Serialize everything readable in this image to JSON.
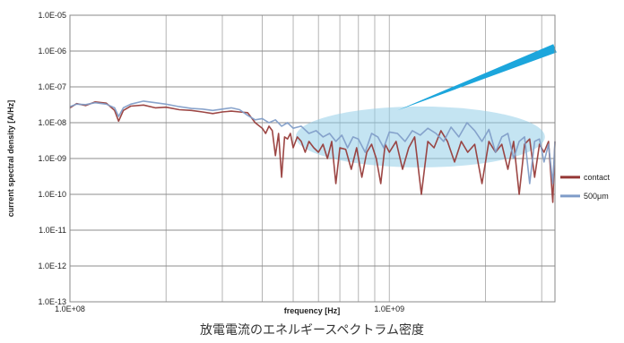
{
  "chart_data": {
    "type": "line",
    "title": "",
    "xlabel": "frequency [Hz]",
    "ylabel": "current spectral density [A/Hz]",
    "x_scale": "log",
    "y_scale": "log",
    "xlim": [
      100000000.0,
      3300000000.0
    ],
    "ylim": [
      1e-13,
      1e-05
    ],
    "x_ticks": [
      100000000.0,
      1000000000.0
    ],
    "x_tick_labels": [
      "1.0E+08",
      "1.0E+09"
    ],
    "y_ticks": [
      1e-13,
      1e-12,
      1e-11,
      1e-10,
      1e-09,
      1e-08,
      1e-07,
      1e-06,
      1e-05
    ],
    "y_tick_labels": [
      "1.0E-13",
      "1.0E-12",
      "1.0E-11",
      "1.0E-10",
      "1.0E-09",
      "1.0E-08",
      "1.0E-07",
      "1.0E-06",
      "1.0E-05"
    ],
    "grid": true,
    "legend_position": "right",
    "series": [
      {
        "name": "contact",
        "color": "#953735",
        "x": [
          100000000.0,
          105000000.0,
          112000000.0,
          120000000.0,
          130000000.0,
          138000000.0,
          142000000.0,
          147000000.0,
          155000000.0,
          170000000.0,
          185000000.0,
          200000000.0,
          220000000.0,
          240000000.0,
          260000000.0,
          280000000.0,
          300000000.0,
          320000000.0,
          340000000.0,
          360000000.0,
          380000000.0,
          400000000.0,
          410000000.0,
          420000000.0,
          430000000.0,
          440000000.0,
          450000000.0,
          460000000.0,
          470000000.0,
          480000000.0,
          490000000.0,
          500000000.0,
          515000000.0,
          530000000.0,
          545000000.0,
          560000000.0,
          580000000.0,
          600000000.0,
          620000000.0,
          640000000.0,
          660000000.0,
          680000000.0,
          700000000.0,
          730000000.0,
          760000000.0,
          790000000.0,
          820000000.0,
          850000000.0,
          880000000.0,
          910000000.0,
          940000000.0,
          970000000.0,
          1000000000.0,
          1050000000.0,
          1100000000.0,
          1150000000.0,
          1200000000.0,
          1260000000.0,
          1320000000.0,
          1380000000.0,
          1450000000.0,
          1520000000.0,
          1600000000.0,
          1680000000.0,
          1760000000.0,
          1850000000.0,
          1950000000.0,
          2050000000.0,
          2150000000.0,
          2250000000.0,
          2350000000.0,
          2450000000.0,
          2550000000.0,
          2650000000.0,
          2750000000.0,
          2850000000.0,
          2950000000.0,
          3050000000.0,
          3150000000.0,
          3250000000.0,
          3300000000.0
        ],
        "y": [
          2.6e-08,
          3.4e-08,
          3e-08,
          3.8e-08,
          3.5e-08,
          2.2e-08,
          1.1e-08,
          2.2e-08,
          2.9e-08,
          3.1e-08,
          2.6e-08,
          2.7e-08,
          2.3e-08,
          2.2e-08,
          2e-08,
          1.8e-08,
          2e-08,
          2.1e-08,
          2e-08,
          1.9e-08,
          1e-08,
          7e-09,
          5e-09,
          8e-09,
          6e-09,
          1.2e-09,
          5e-09,
          3e-10,
          4e-09,
          3.5e-09,
          5e-09,
          2e-09,
          4e-09,
          3e-09,
          1.5e-09,
          3e-09,
          2e-09,
          1.5e-09,
          2.5e-09,
          1e-09,
          3e-09,
          2e-10,
          2e-09,
          1.8e-09,
          5e-10,
          2e-09,
          3e-10,
          1.5e-09,
          2.5e-09,
          1e-09,
          2e-10,
          2.5e-09,
          1.5e-09,
          3e-09,
          5e-10,
          2e-09,
          4e-09,
          1e-10,
          3e-09,
          2e-09,
          6e-09,
          3e-09,
          8e-10,
          3e-09,
          1.5e-09,
          2.5e-09,
          2e-10,
          3e-09,
          1.5e-09,
          2.5e-09,
          5e-10,
          3e-09,
          1e-10,
          2.5e-09,
          3.5e-09,
          3e-10,
          2.5e-09,
          1.5e-09,
          3e-09,
          6e-11,
          3e-09
        ]
      },
      {
        "name": "500μm",
        "color": "#7f9cc8",
        "x": [
          100000000.0,
          105000000.0,
          112000000.0,
          120000000.0,
          130000000.0,
          138000000.0,
          142000000.0,
          147000000.0,
          155000000.0,
          170000000.0,
          185000000.0,
          200000000.0,
          220000000.0,
          240000000.0,
          260000000.0,
          280000000.0,
          300000000.0,
          320000000.0,
          340000000.0,
          360000000.0,
          380000000.0,
          400000000.0,
          420000000.0,
          440000000.0,
          460000000.0,
          480000000.0,
          500000000.0,
          530000000.0,
          560000000.0,
          590000000.0,
          620000000.0,
          650000000.0,
          680000000.0,
          710000000.0,
          740000000.0,
          770000000.0,
          800000000.0,
          840000000.0,
          880000000.0,
          920000000.0,
          960000000.0,
          1000000000.0,
          1060000000.0,
          1120000000.0,
          1180000000.0,
          1250000000.0,
          1320000000.0,
          1400000000.0,
          1480000000.0,
          1560000000.0,
          1650000000.0,
          1750000000.0,
          1850000000.0,
          1950000000.0,
          2050000000.0,
          2150000000.0,
          2250000000.0,
          2350000000.0,
          2450000000.0,
          2550000000.0,
          2650000000.0,
          2750000000.0,
          2850000000.0,
          2950000000.0,
          3050000000.0,
          3150000000.0,
          3250000000.0,
          3300000000.0
        ],
        "y": [
          2.8e-08,
          3.3e-08,
          3.2e-08,
          3.6e-08,
          3.3e-08,
          2.6e-08,
          1.5e-08,
          2.6e-08,
          3.3e-08,
          4e-08,
          3.6e-08,
          3.3e-08,
          2.8e-08,
          2.5e-08,
          2.4e-08,
          2.2e-08,
          2.4e-08,
          2.6e-08,
          2.3e-08,
          1.6e-08,
          1.2e-08,
          1.3e-08,
          1e-08,
          1.2e-08,
          8e-09,
          1e-08,
          7e-09,
          8e-09,
          5e-09,
          6e-09,
          4e-09,
          5e-09,
          3e-09,
          4.5e-09,
          2e-09,
          4e-09,
          3.5e-09,
          1.5e-09,
          5e-09,
          4e-09,
          2e-09,
          5.5e-09,
          5e-09,
          3e-09,
          6e-09,
          4.5e-09,
          7e-09,
          5e-09,
          3e-09,
          7.5e-09,
          4e-09,
          1e-08,
          6e-09,
          3e-09,
          6.5e-09,
          1.5e-09,
          4e-09,
          5e-09,
          1e-09,
          3e-09,
          4e-09,
          2e-10,
          3e-09,
          3.5e-09,
          8e-10,
          2.5e-09,
          2e-10,
          3e-09
        ]
      }
    ],
    "annotations": [
      {
        "type": "ellipse",
        "color": "#93cde8",
        "cx": 1250000000.0,
        "cy": 4e-09,
        "rx_decades": 0.39,
        "ry_decades": 0.85
      },
      {
        "type": "pointer",
        "color": "#1ca6dc",
        "tip": [
          1060000000.0,
          2.2e-08
        ],
        "base": [
          3300000000.0,
          1.2e-06
        ]
      }
    ]
  },
  "caption": "放電電流のエネルギースペクトラム密度"
}
